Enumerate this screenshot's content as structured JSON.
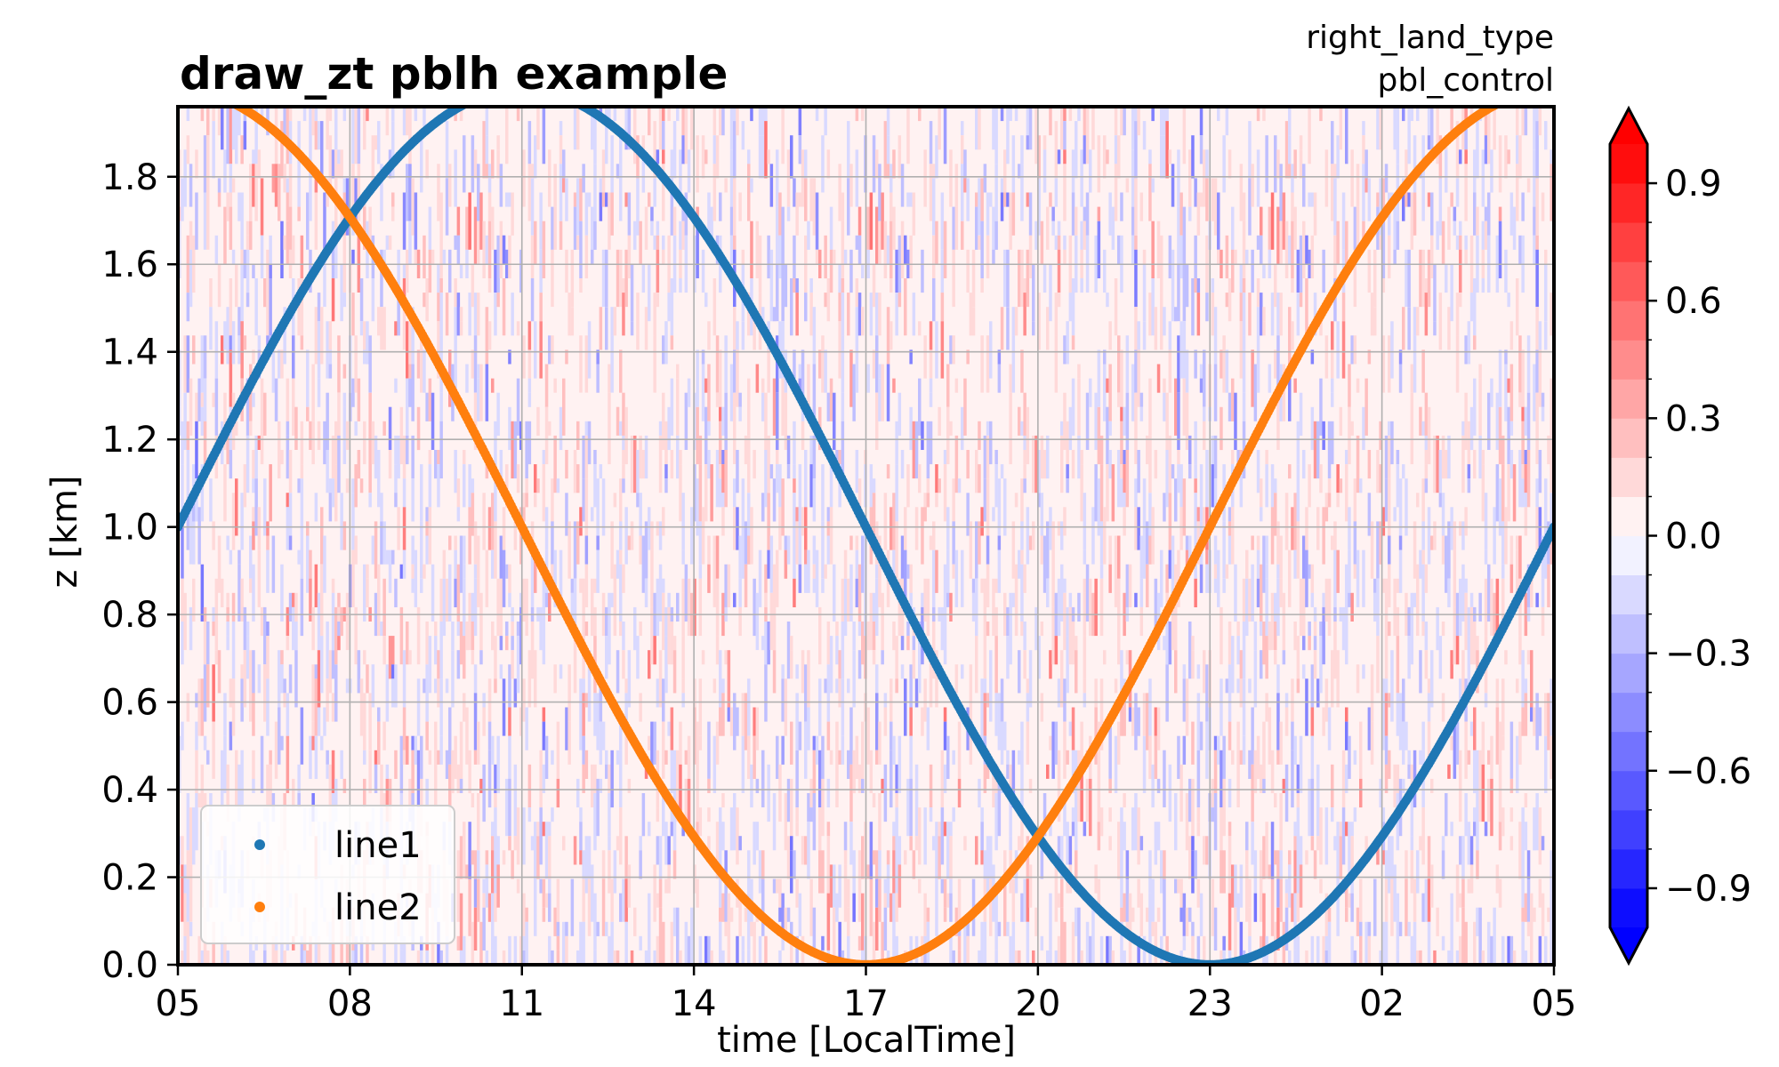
{
  "chart_data": {
    "type": "heatmap",
    "title": "draw_zt pblh example",
    "right_title_lines": [
      "right_land_type",
      "pbl_control"
    ],
    "xlabel": "time [LocalTime]",
    "ylabel": "z [km]",
    "xticks": [
      "05",
      "08",
      "11",
      "14",
      "17",
      "20",
      "23",
      "02",
      "05"
    ],
    "xlim_hours": [
      5,
      29
    ],
    "yticks": [
      "0.0",
      "0.2",
      "0.4",
      "0.6",
      "0.8",
      "1.0",
      "1.2",
      "1.4",
      "1.6",
      "1.8"
    ],
    "ylim": [
      0.0,
      1.96
    ],
    "grid": true,
    "legend_position": "lower-left",
    "heatmap": {
      "description": "random noise field",
      "cmap": "bwr",
      "vmin": -1.0,
      "vmax": 1.0,
      "levels_step": 0.1,
      "colorbar_ticks": [
        "0.9",
        "0.6",
        "0.3",
        "0.0",
        "−0.3",
        "−0.6",
        "−0.9"
      ],
      "colorbar_tick_values": [
        0.9,
        0.6,
        0.3,
        0.0,
        -0.3,
        -0.6,
        -0.9
      ],
      "colorbar_extend": "both"
    },
    "series": [
      {
        "name": "line1",
        "color": "#1f77b4",
        "type": "scatter",
        "formula": "1 + sin(2*pi*(t-5)/24)",
        "x": [
          5,
          7,
          9,
          11,
          13,
          15,
          17,
          19,
          21,
          23,
          25,
          27,
          29
        ],
        "y": [
          1.0,
          1.5,
          1.866,
          2.0,
          1.866,
          1.5,
          1.0,
          0.5,
          0.134,
          0.0,
          0.134,
          0.5,
          1.0
        ]
      },
      {
        "name": "line2",
        "color": "#ff7f0e",
        "type": "scatter",
        "formula": "1 + cos(2*pi*(t-5)/24)",
        "x": [
          5,
          7,
          9,
          11,
          13,
          15,
          17,
          19,
          21,
          23,
          25,
          27,
          29
        ],
        "y": [
          2.0,
          1.866,
          1.5,
          1.0,
          0.5,
          0.134,
          0.0,
          0.134,
          0.5,
          1.0,
          1.5,
          1.866,
          2.0
        ]
      }
    ]
  }
}
